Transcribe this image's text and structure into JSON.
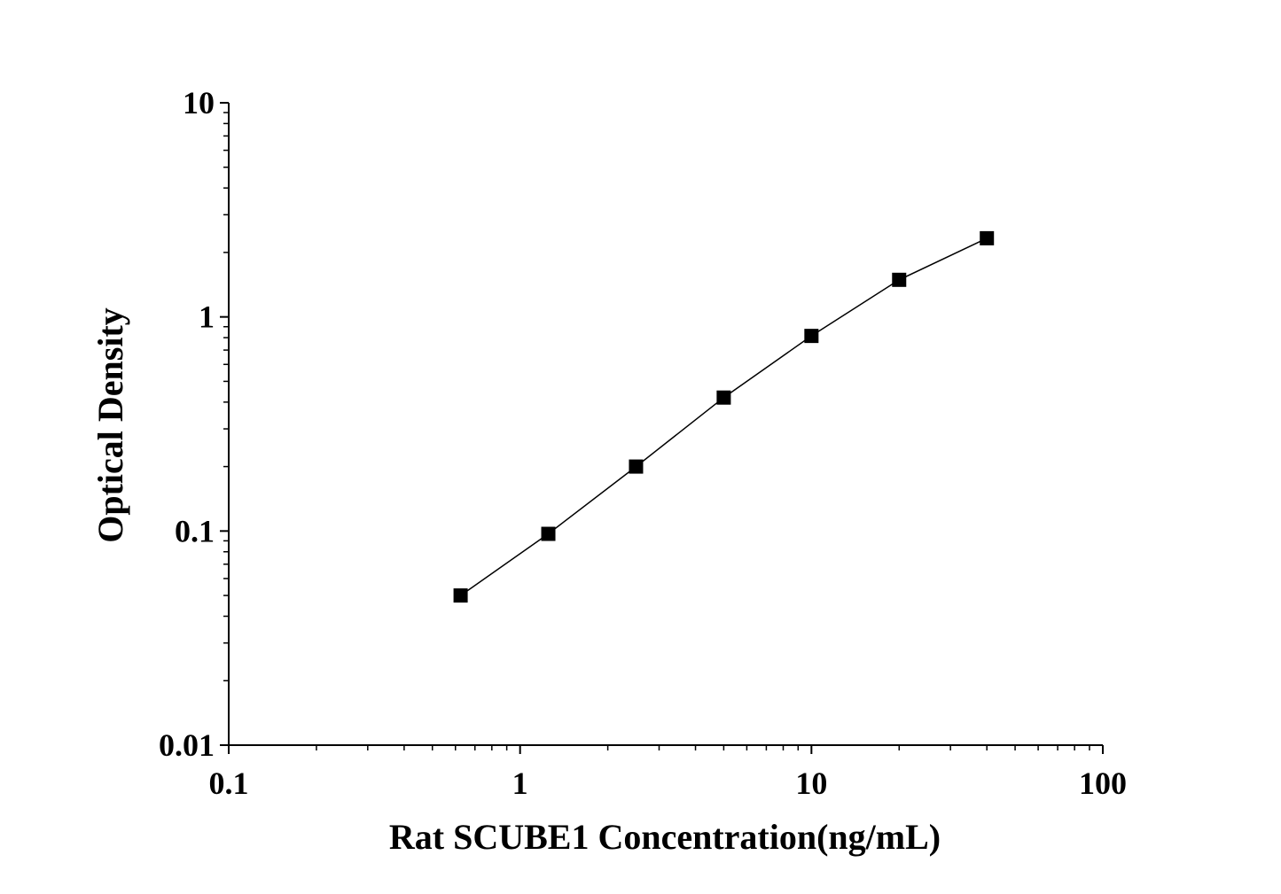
{
  "chart_data": {
    "type": "scatter",
    "title": "",
    "xlabel": "Rat SCUBE1 Concentration(ng/mL)",
    "ylabel": "Optical Density",
    "xscale": "log",
    "yscale": "log",
    "xlim": [
      0.1,
      100
    ],
    "ylim": [
      0.01,
      10
    ],
    "xticks": [
      "0.1",
      "1",
      "10",
      "100"
    ],
    "yticks": [
      "0.01",
      "0.1",
      "1",
      "10"
    ],
    "grid": false,
    "marker": "square",
    "line": "smooth connecting line",
    "color": "#000000",
    "series": [
      {
        "x": [
          0.625,
          1.25,
          2.5,
          5,
          10,
          20,
          40
        ],
        "y": [
          0.05,
          0.097,
          0.2,
          0.42,
          0.815,
          1.49,
          2.33
        ]
      }
    ]
  }
}
